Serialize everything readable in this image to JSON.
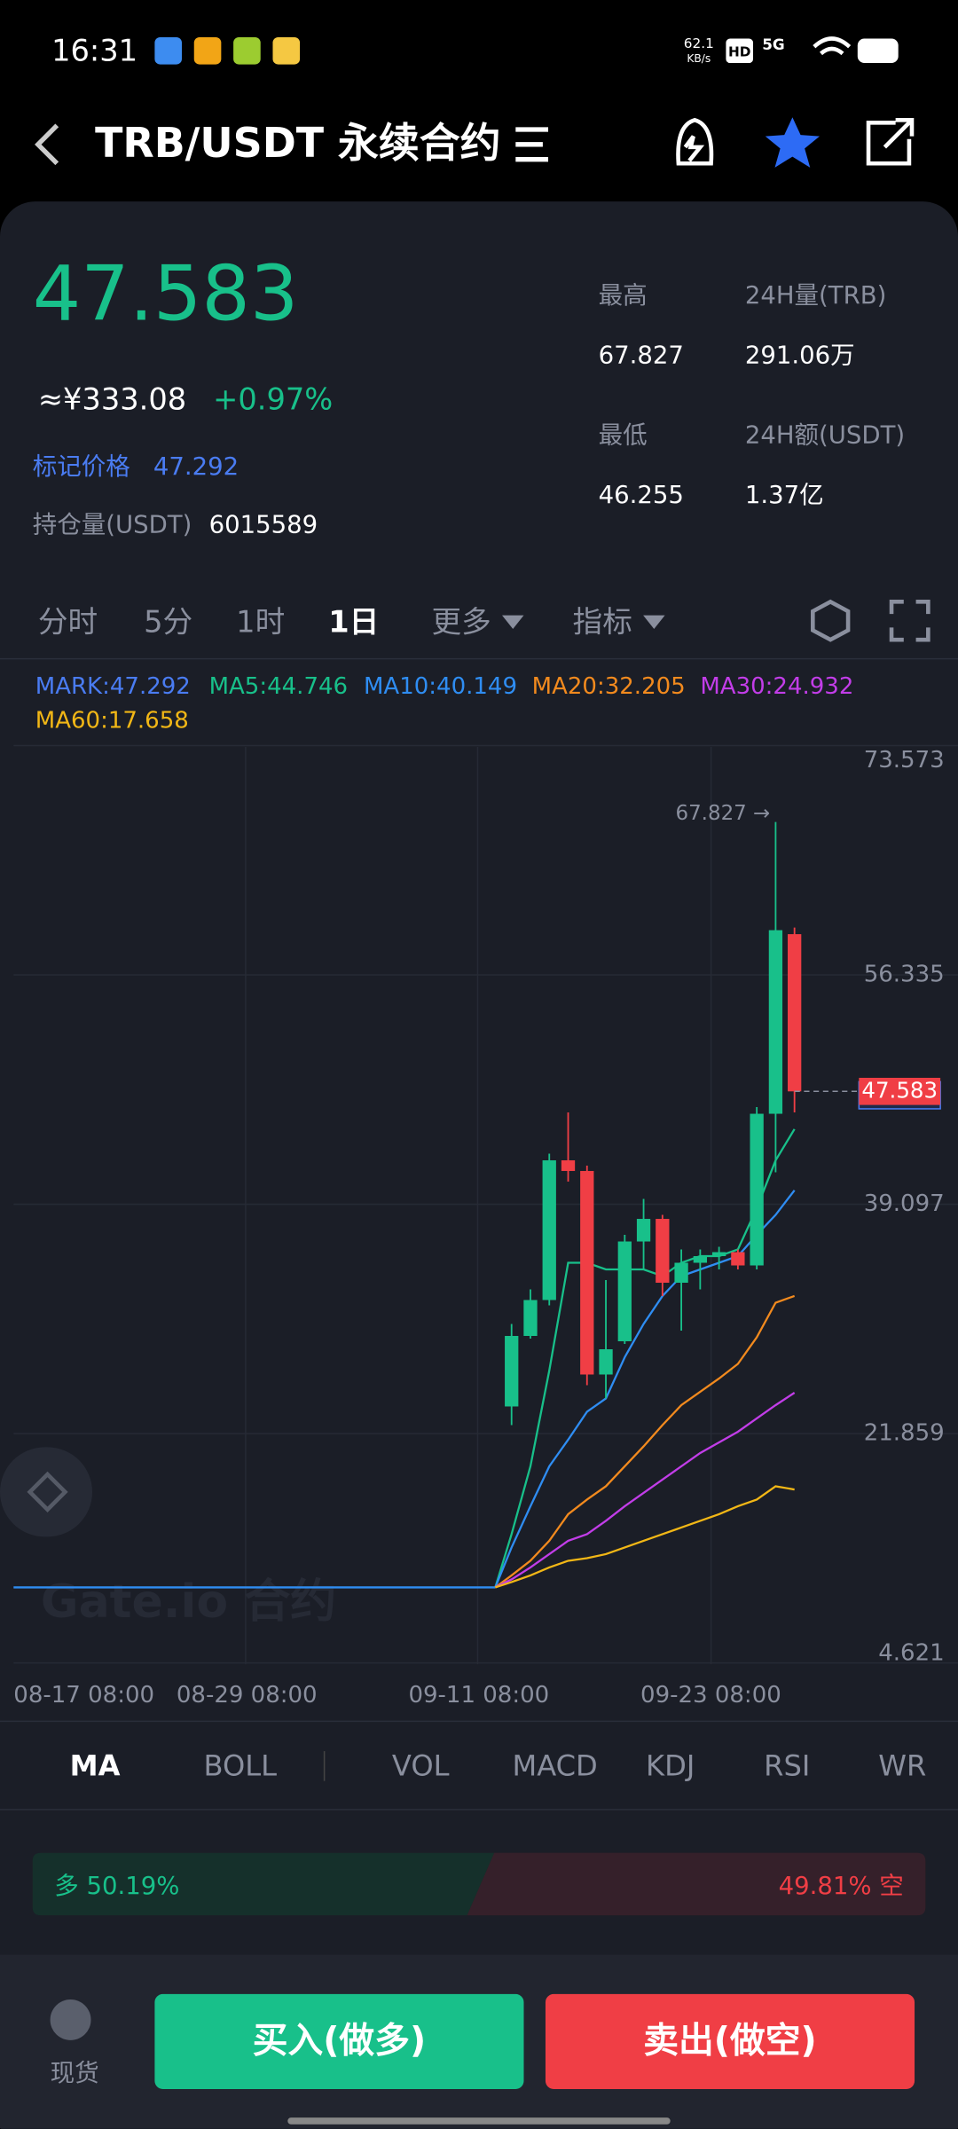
{
  "status": {
    "time": "16:31",
    "speed": "62.1",
    "speed_unit": "KB/s",
    "hd": "HD",
    "net": "5G"
  },
  "header": {
    "title": "TRB/USDT 永续合约"
  },
  "price": {
    "last": "47.583",
    "cny": "≈¥333.08",
    "change": "+0.97%",
    "mark_label": "标记价格",
    "mark_value": "47.292",
    "oi_label": "持仓量(USDT)",
    "oi_value": "6015589"
  },
  "stats": {
    "high_label": "最高",
    "high": "67.827",
    "vol_label": "24H量(TRB)",
    "vol": "291.06万",
    "low_label": "最低",
    "low": "46.255",
    "amt_label": "24H额(USDT)",
    "amt": "1.37亿"
  },
  "tabs": [
    "分时",
    "5分",
    "1时",
    "1日",
    "更多",
    "指标"
  ],
  "legend": [
    "MARK:47.292",
    "MA5:44.746",
    "MA10:40.149",
    "MA20:32.205",
    "MA30:24.932",
    "MA60:17.658"
  ],
  "chart": {
    "type": "candlestick",
    "ylim": [
      4.621,
      73.573
    ],
    "yticks": [
      73.573,
      56.335,
      39.097,
      21.859,
      4.621
    ],
    "xlabels": [
      "08-17 08:00",
      "08-29 08:00",
      "09-11 08:00",
      "09-23 08:00"
    ],
    "base": 10.3,
    "candles": [
      {
        "open": 23.9,
        "high": 30.1,
        "low": 22.5,
        "close": 29.2
      },
      {
        "open": 29.2,
        "high": 32.7,
        "low": 29.0,
        "close": 31.9
      },
      {
        "open": 31.9,
        "high": 42.9,
        "low": 31.5,
        "close": 42.4
      },
      {
        "open": 42.4,
        "high": 46.0,
        "low": 40.8,
        "close": 41.6
      },
      {
        "open": 41.6,
        "high": 42.0,
        "low": 25.5,
        "close": 26.3
      },
      {
        "open": 26.3,
        "high": 33.4,
        "low": 24.5,
        "close": 28.2
      },
      {
        "open": 28.8,
        "high": 36.8,
        "low": 28.6,
        "close": 36.3
      },
      {
        "open": 36.3,
        "high": 39.5,
        "low": 34.2,
        "close": 38.0
      },
      {
        "open": 38.0,
        "high": 38.3,
        "low": 32.2,
        "close": 33.2
      },
      {
        "open": 33.2,
        "high": 35.7,
        "low": 29.6,
        "close": 34.7
      },
      {
        "open": 34.7,
        "high": 35.7,
        "low": 32.7,
        "close": 35.2
      },
      {
        "open": 35.2,
        "high": 35.9,
        "low": 34.2,
        "close": 35.5
      },
      {
        "open": 35.5,
        "high": 35.7,
        "low": 34.2,
        "close": 34.5
      },
      {
        "open": 34.5,
        "high": 46.4,
        "low": 34.2,
        "close": 45.9
      },
      {
        "open": 45.9,
        "high": 67.827,
        "low": 41.5,
        "close": 59.7
      },
      {
        "open": 59.4,
        "high": 59.9,
        "low": 46.0,
        "close": 47.583
      }
    ],
    "up_color": "#18c08a",
    "down_color": "#f03e45",
    "high_annotation": "67.827 →",
    "mark_price": 47.292,
    "last_price": 47.583,
    "ma": [
      {
        "color": "#18c08a",
        "values": [
          14.3,
          19.4,
          26.6,
          34.7,
          34.7,
          34.2,
          34.2,
          34.2,
          33.7,
          34.7,
          35.2,
          35.2,
          35.7,
          38.8,
          42.4,
          44.746
        ]
      },
      {
        "color": "#2f8df2",
        "values": [
          13.3,
          16.4,
          19.4,
          21.4,
          23.5,
          24.5,
          27.6,
          30.1,
          32.2,
          33.7,
          34.2,
          34.7,
          35.2,
          36.8,
          38.3,
          40.149
        ]
      },
      {
        "color": "#f28a1e",
        "values": [
          11.2,
          12.3,
          13.8,
          15.8,
          16.9,
          17.9,
          19.4,
          20.9,
          22.5,
          24.0,
          25.0,
          26.0,
          27.1,
          29.1,
          31.7,
          32.205
        ]
      },
      {
        "color": "#c23de8",
        "values": [
          10.9,
          11.8,
          12.8,
          13.8,
          14.3,
          15.3,
          16.4,
          17.4,
          18.4,
          19.4,
          20.4,
          21.2,
          22.0,
          23.0,
          24.0,
          24.932
        ]
      },
      {
        "color": "#f2b716",
        "values": [
          10.7,
          11.2,
          11.8,
          12.3,
          12.5,
          12.8,
          13.3,
          13.8,
          14.3,
          14.8,
          15.3,
          15.8,
          16.4,
          16.9,
          17.9,
          17.658
        ]
      }
    ],
    "watermark": "Gate.io 合约"
  },
  "indicators": [
    "MA",
    "BOLL",
    "VOL",
    "MACD",
    "KDJ",
    "RSI",
    "WR"
  ],
  "ratio": {
    "long_label": "多 50.19%",
    "long_value": 50.19,
    "short_label": "49.81% 空",
    "short_value": 49.81
  },
  "bottom": {
    "spot": "现货",
    "buy": "买入(做多)",
    "sell": "卖出(做空)"
  }
}
